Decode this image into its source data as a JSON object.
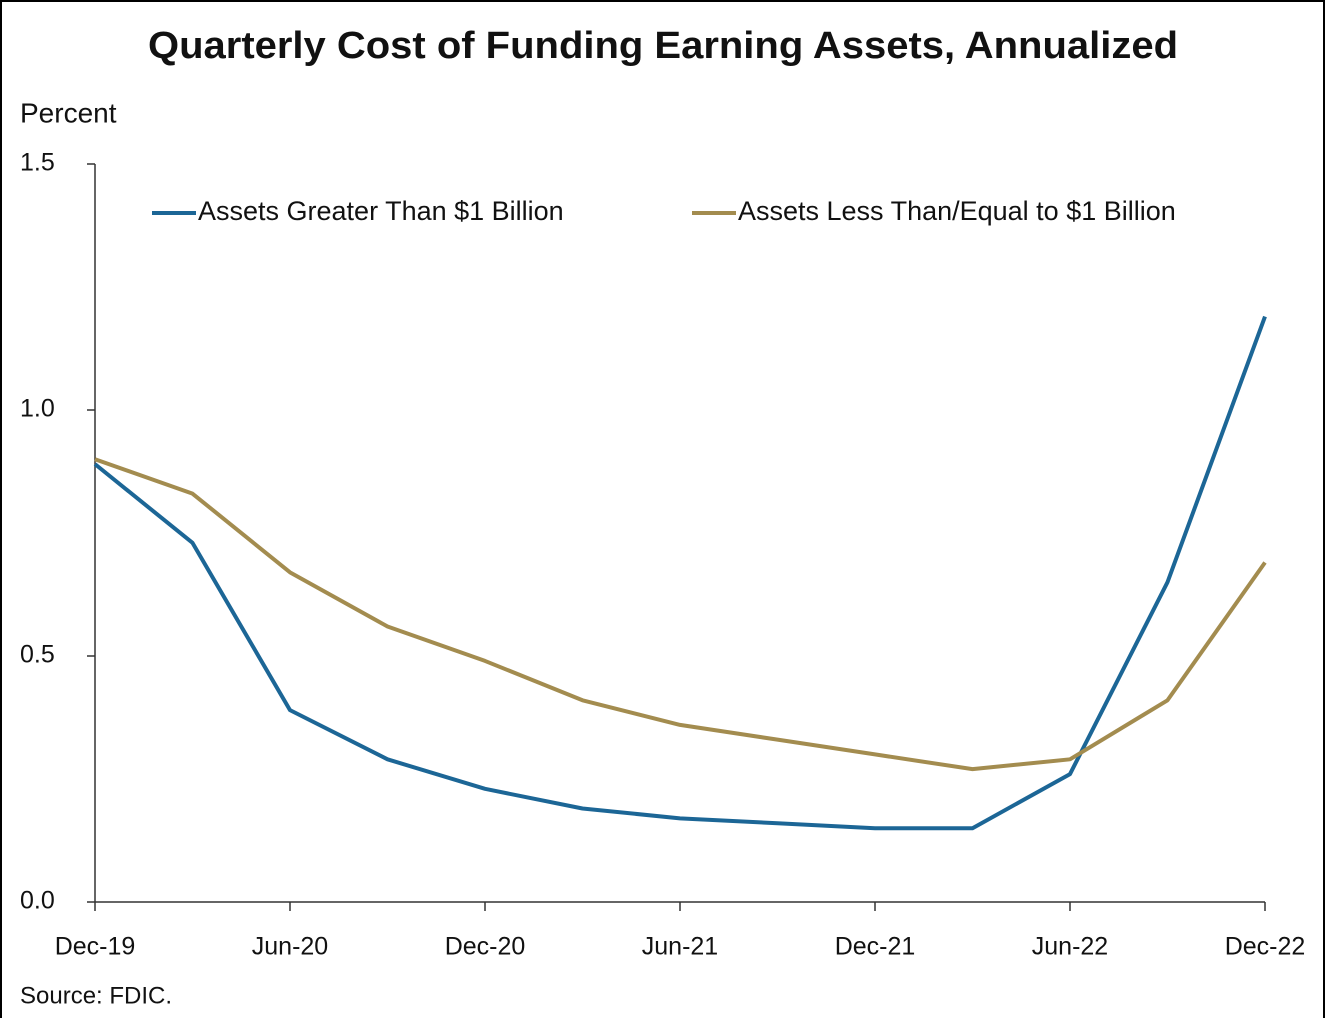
{
  "chart_data": {
    "type": "line",
    "title": "Quarterly Cost of Funding Earning Assets, Annualized",
    "y_label": "Percent",
    "source": "Source: FDIC.",
    "categories": [
      "Dec-19",
      null,
      "Jun-20",
      null,
      "Dec-20",
      null,
      "Jun-21",
      null,
      "Dec-21",
      null,
      "Jun-22",
      null,
      "Dec-22"
    ],
    "series": [
      {
        "name": "Assets Greater Than $1 Billion",
        "color": "#1c6696",
        "values": [
          0.89,
          0.73,
          0.39,
          0.29,
          0.23,
          0.19,
          0.17,
          0.16,
          0.15,
          0.15,
          0.26,
          0.65,
          1.19
        ]
      },
      {
        "name": "Assets Less Than/Equal to $1 Billion",
        "color": "#a38c4f",
        "values": [
          0.9,
          0.83,
          0.67,
          0.56,
          0.49,
          0.41,
          0.36,
          0.33,
          0.3,
          0.27,
          0.29,
          0.41,
          0.69
        ]
      }
    ],
    "ylim": [
      0,
      1.5
    ],
    "yticks": [
      {
        "value": 0,
        "label": "0.0"
      },
      0.5,
      {
        "value": 1,
        "label": "1.0"
      },
      1.5
    ],
    "grid": false,
    "legend": "top"
  }
}
